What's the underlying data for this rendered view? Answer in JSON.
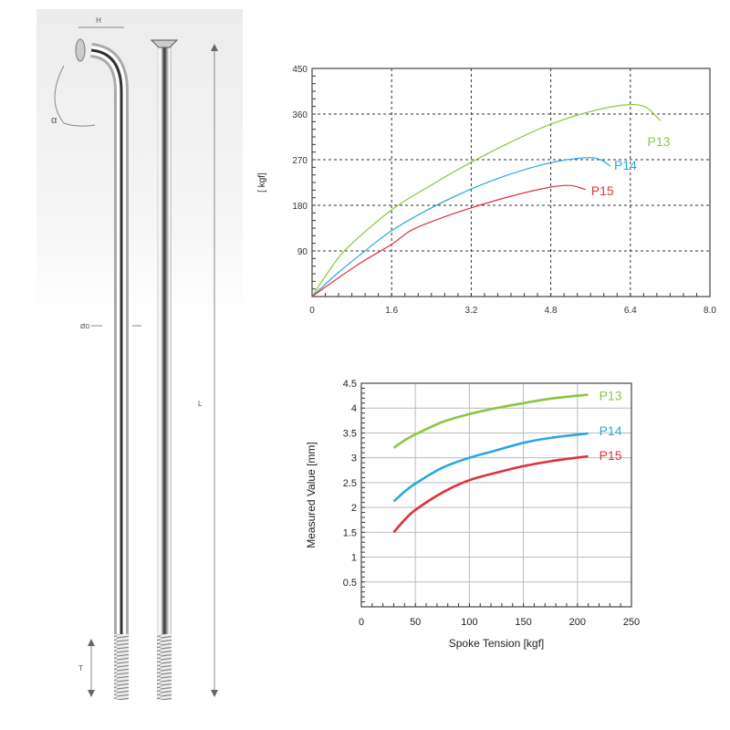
{
  "spoke_diagram": {
    "labels": {
      "head_width": "H",
      "angle": "α",
      "diameter": "ØD",
      "length": "L",
      "thread": "T"
    }
  },
  "colors": {
    "P13": "#8cc63f",
    "P14": "#29a8df",
    "P15": "#e0303c"
  },
  "chart_data": [
    {
      "type": "line",
      "title": "",
      "xlabel": "",
      "ylabel": "[ kgf]",
      "xlim": [
        0,
        8.0
      ],
      "ylim": [
        0,
        450
      ],
      "xticks": [
        "0",
        "1.6",
        "3.2",
        "4.8",
        "6.4",
        "8.0"
      ],
      "yticks": [
        "90",
        "180",
        "270",
        "360",
        "450"
      ],
      "grid": "dashed",
      "series": [
        {
          "name": "P13",
          "points": [
            [
              0,
              0
            ],
            [
              0.3,
              45
            ],
            [
              0.7,
              95
            ],
            [
              1.6,
              171
            ],
            [
              2.4,
              220
            ],
            [
              3.2,
              265
            ],
            [
              4.0,
              305
            ],
            [
              4.8,
              340
            ],
            [
              5.6,
              365
            ],
            [
              6.3,
              378
            ],
            [
              6.7,
              374
            ],
            [
              7.0,
              347
            ]
          ]
        },
        {
          "name": "P14",
          "points": [
            [
              0,
              0
            ],
            [
              0.5,
              45
            ],
            [
              1.0,
              85
            ],
            [
              1.6,
              130
            ],
            [
              2.4,
              175
            ],
            [
              3.2,
              212
            ],
            [
              4.0,
              242
            ],
            [
              4.8,
              264
            ],
            [
              5.5,
              274
            ],
            [
              5.8,
              270
            ],
            [
              6.0,
              257
            ]
          ]
        },
        {
          "name": "P15",
          "points": [
            [
              0,
              0
            ],
            [
              0.5,
              35
            ],
            [
              1.0,
              68
            ],
            [
              1.6,
              103
            ],
            [
              2.0,
              131
            ],
            [
              2.6,
              155
            ],
            [
              3.2,
              175
            ],
            [
              4.0,
              198
            ],
            [
              4.8,
              216
            ],
            [
              5.2,
              219
            ],
            [
              5.5,
              211
            ]
          ]
        }
      ]
    },
    {
      "type": "line",
      "title": "",
      "xlabel": "Spoke Tension [kgf]",
      "ylabel": "Measured Value [mm]",
      "xlim": [
        0,
        250
      ],
      "ylim": [
        0,
        4.5
      ],
      "xticks": [
        "0",
        "50",
        "100",
        "150",
        "200",
        "250"
      ],
      "yticks": [
        "0.5",
        "1",
        "1.5",
        "2",
        "2.5",
        "3",
        "3.5",
        "4",
        "4.5"
      ],
      "grid": "solid",
      "series": [
        {
          "name": "P13",
          "points": [
            [
              30,
              3.2
            ],
            [
              40,
              3.35
            ],
            [
              50,
              3.47
            ],
            [
              75,
              3.72
            ],
            [
              100,
              3.88
            ],
            [
              125,
              4.0
            ],
            [
              150,
              4.1
            ],
            [
              175,
              4.19
            ],
            [
              210,
              4.27
            ]
          ]
        },
        {
          "name": "P14",
          "points": [
            [
              30,
              2.12
            ],
            [
              40,
              2.32
            ],
            [
              50,
              2.48
            ],
            [
              75,
              2.8
            ],
            [
              100,
              3.0
            ],
            [
              125,
              3.15
            ],
            [
              150,
              3.3
            ],
            [
              175,
              3.4
            ],
            [
              210,
              3.49
            ]
          ]
        },
        {
          "name": "P15",
          "points": [
            [
              30,
              1.5
            ],
            [
              40,
              1.75
            ],
            [
              50,
              1.95
            ],
            [
              75,
              2.3
            ],
            [
              100,
              2.55
            ],
            [
              125,
              2.7
            ],
            [
              150,
              2.83
            ],
            [
              175,
              2.93
            ],
            [
              210,
              3.03
            ]
          ]
        }
      ]
    }
  ]
}
